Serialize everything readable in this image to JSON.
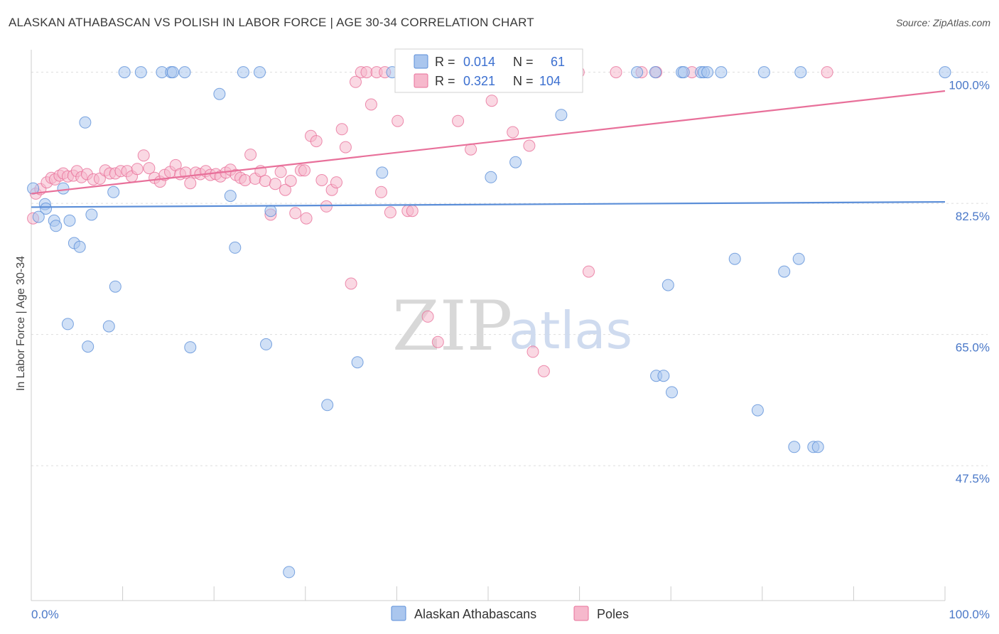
{
  "header": {
    "title": "ALASKAN ATHABASCAN VS POLISH IN LABOR FORCE | AGE 30-34 CORRELATION CHART",
    "source": "Source: ZipAtlas.com"
  },
  "watermark": {
    "zip": "ZIP",
    "atlas": "atlas"
  },
  "colors": {
    "blue": "#5b8ed8",
    "blue_fill": "#aac6ee",
    "pink": "#e8709a",
    "pink_fill": "#f6b8cc",
    "tick_text": "#4a78c8",
    "grid": "#dddddd"
  },
  "legend": {
    "rows": [
      {
        "r_label": "R =",
        "r_value": "0.014",
        "n_label": "N =",
        "n_value": "61"
      },
      {
        "r_label": "R =",
        "r_value": "0.321",
        "n_label": "N =",
        "n_value": "104"
      }
    ]
  },
  "chart_data": {
    "type": "scatter",
    "title": "ALASKAN ATHABASCAN VS POLISH IN LABOR FORCE | AGE 30-34 CORRELATION CHART",
    "xlabel": "",
    "ylabel": "In Labor Force | Age 30-34",
    "xlim": [
      0,
      100
    ],
    "ylim": [
      29.5,
      103
    ],
    "x_tick_labels": [
      "0.0%",
      "100.0%"
    ],
    "y_ticks": [
      47.5,
      65.0,
      82.5,
      100.0
    ],
    "y_tick_labels": [
      "47.5%",
      "65.0%",
      "82.5%",
      "100.0%"
    ],
    "grid": true,
    "legend_position": "bottom-center",
    "series": [
      {
        "name": "Alaskan Athabascans",
        "trend": {
          "x": [
            0,
            100
          ],
          "y": [
            82.0,
            82.7
          ]
        },
        "points": [
          [
            0.2,
            84.5
          ],
          [
            1.5,
            82.4
          ],
          [
            1.6,
            81.8
          ],
          [
            0.8,
            80.7
          ],
          [
            2.5,
            80.2
          ],
          [
            4.2,
            80.2
          ],
          [
            2.7,
            79.5
          ],
          [
            4.7,
            77.2
          ],
          [
            5.3,
            76.7
          ],
          [
            6.6,
            81.0
          ],
          [
            9.0,
            84.0
          ],
          [
            5.9,
            93.3
          ],
          [
            3.5,
            84.5
          ],
          [
            9.2,
            71.4
          ],
          [
            4.0,
            66.4
          ],
          [
            8.5,
            66.1
          ],
          [
            6.2,
            63.4
          ],
          [
            17.4,
            63.3
          ],
          [
            10.2,
            100.0
          ],
          [
            12.0,
            100.0
          ],
          [
            14.3,
            100.0
          ],
          [
            15.3,
            100.0
          ],
          [
            15.5,
            100.0
          ],
          [
            16.8,
            100.0
          ],
          [
            20.6,
            97.1
          ],
          [
            21.8,
            83.5
          ],
          [
            22.3,
            76.6
          ],
          [
            23.2,
            100.0
          ],
          [
            25.0,
            100.0
          ],
          [
            25.7,
            63.7
          ],
          [
            26.2,
            81.5
          ],
          [
            28.2,
            33.3
          ],
          [
            32.4,
            55.6
          ],
          [
            35.7,
            61.3
          ],
          [
            38.4,
            86.6
          ],
          [
            39.5,
            100.0
          ],
          [
            50.3,
            86.0
          ],
          [
            53.0,
            88.0
          ],
          [
            58.0,
            94.3
          ],
          [
            66.3,
            100.0
          ],
          [
            68.3,
            100.0
          ],
          [
            68.4,
            59.5
          ],
          [
            69.2,
            59.5
          ],
          [
            69.7,
            71.6
          ],
          [
            70.1,
            57.3
          ],
          [
            71.2,
            100.0
          ],
          [
            71.4,
            100.0
          ],
          [
            73.3,
            100.0
          ],
          [
            73.6,
            100.0
          ],
          [
            74.0,
            100.0
          ],
          [
            75.5,
            100.0
          ],
          [
            77.0,
            75.1
          ],
          [
            79.5,
            54.9
          ],
          [
            80.2,
            100.0
          ],
          [
            82.4,
            73.4
          ],
          [
            83.5,
            50.0
          ],
          [
            84.0,
            75.1
          ],
          [
            84.2,
            100.0
          ],
          [
            85.6,
            50.0
          ],
          [
            86.1,
            50.0
          ],
          [
            100.0,
            100.0
          ]
        ]
      },
      {
        "name": "Poles",
        "trend": {
          "x": [
            0,
            100
          ],
          "y": [
            83.8,
            97.5
          ]
        },
        "points": [
          [
            0.2,
            80.5
          ],
          [
            0.5,
            83.8
          ],
          [
            1.0,
            84.4
          ],
          [
            1.7,
            85.3
          ],
          [
            2.2,
            85.9
          ],
          [
            2.6,
            85.7
          ],
          [
            3.1,
            86.2
          ],
          [
            3.5,
            86.5
          ],
          [
            4.0,
            86.1
          ],
          [
            4.6,
            86.2
          ],
          [
            5.0,
            86.8
          ],
          [
            5.5,
            86.0
          ],
          [
            6.1,
            86.4
          ],
          [
            6.8,
            85.7
          ],
          [
            7.5,
            85.8
          ],
          [
            8.1,
            86.9
          ],
          [
            8.6,
            86.5
          ],
          [
            9.2,
            86.5
          ],
          [
            9.8,
            86.8
          ],
          [
            10.5,
            86.8
          ],
          [
            11.0,
            86.1
          ],
          [
            11.6,
            87.1
          ],
          [
            12.3,
            88.9
          ],
          [
            12.9,
            87.2
          ],
          [
            13.5,
            85.9
          ],
          [
            14.1,
            85.4
          ],
          [
            14.6,
            86.3
          ],
          [
            15.2,
            86.7
          ],
          [
            15.8,
            87.6
          ],
          [
            16.3,
            86.4
          ],
          [
            16.9,
            86.6
          ],
          [
            17.4,
            85.2
          ],
          [
            18.0,
            86.6
          ],
          [
            18.5,
            86.4
          ],
          [
            19.1,
            86.8
          ],
          [
            19.6,
            86.3
          ],
          [
            20.2,
            86.4
          ],
          [
            20.7,
            86.1
          ],
          [
            21.3,
            86.6
          ],
          [
            21.8,
            87.0
          ],
          [
            22.4,
            86.3
          ],
          [
            22.9,
            85.9
          ],
          [
            23.4,
            85.6
          ],
          [
            24.0,
            89.0
          ],
          [
            24.5,
            85.8
          ],
          [
            25.1,
            86.8
          ],
          [
            25.6,
            85.5
          ],
          [
            26.2,
            81.0
          ],
          [
            26.7,
            85.1
          ],
          [
            27.3,
            86.7
          ],
          [
            27.8,
            84.3
          ],
          [
            28.4,
            85.5
          ],
          [
            28.9,
            81.2
          ],
          [
            29.5,
            86.9
          ],
          [
            29.9,
            86.9
          ],
          [
            30.1,
            80.5
          ],
          [
            30.6,
            91.5
          ],
          [
            31.2,
            90.8
          ],
          [
            31.8,
            85.6
          ],
          [
            32.3,
            82.1
          ],
          [
            32.9,
            84.3
          ],
          [
            33.4,
            85.3
          ],
          [
            34.0,
            92.4
          ],
          [
            34.4,
            90.0
          ],
          [
            35.0,
            71.8
          ],
          [
            35.5,
            98.7
          ],
          [
            36.1,
            100.0
          ],
          [
            36.7,
            100.0
          ],
          [
            37.2,
            95.7
          ],
          [
            37.8,
            100.0
          ],
          [
            38.3,
            84.0
          ],
          [
            38.7,
            100.0
          ],
          [
            39.3,
            81.3
          ],
          [
            40.1,
            93.5
          ],
          [
            40.6,
            100.0
          ],
          [
            41.2,
            81.5
          ],
          [
            41.7,
            81.5
          ],
          [
            42.8,
            100.0
          ],
          [
            43.4,
            67.4
          ],
          [
            44.5,
            64.0
          ],
          [
            45.6,
            100.0
          ],
          [
            46.1,
            100.0
          ],
          [
            46.7,
            93.5
          ],
          [
            47.2,
            100.0
          ],
          [
            48.1,
            89.7
          ],
          [
            49.3,
            100.0
          ],
          [
            50.4,
            96.2
          ],
          [
            51.0,
            100.0
          ],
          [
            52.2,
            100.0
          ],
          [
            52.7,
            92.0
          ],
          [
            53.3,
            100.0
          ],
          [
            54.5,
            90.2
          ],
          [
            54.9,
            62.7
          ],
          [
            55.6,
            100.0
          ],
          [
            56.1,
            60.1
          ],
          [
            57.7,
            100.0
          ],
          [
            58.8,
            100.0
          ],
          [
            59.9,
            100.0
          ],
          [
            61.0,
            73.4
          ],
          [
            64.0,
            100.0
          ],
          [
            66.8,
            100.0
          ],
          [
            68.4,
            100.0
          ],
          [
            72.3,
            100.0
          ],
          [
            87.1,
            100.0
          ]
        ]
      }
    ]
  }
}
